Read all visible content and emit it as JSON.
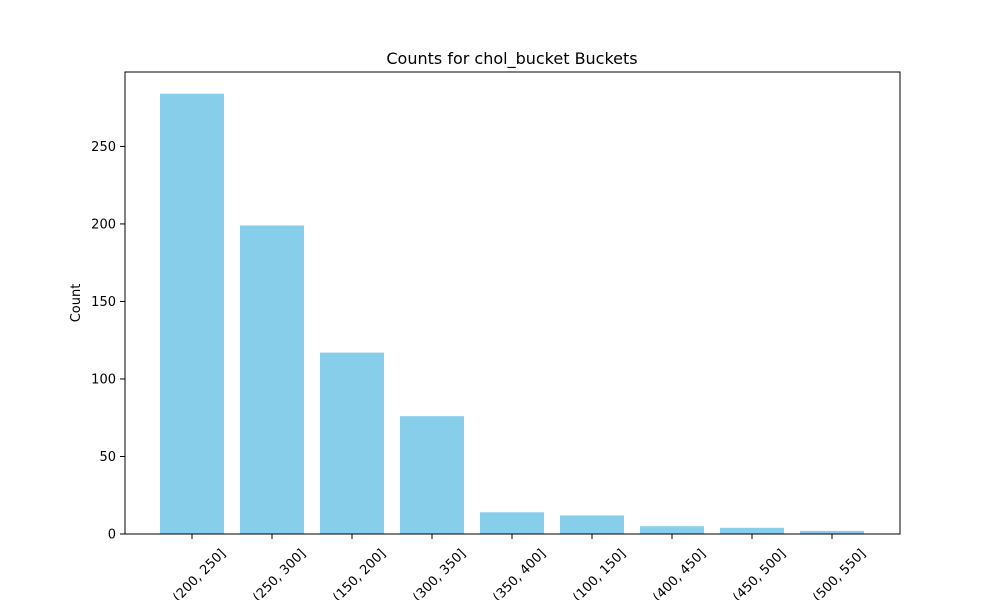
{
  "chart_data": {
    "type": "bar",
    "title": "Counts for chol_bucket Buckets",
    "xlabel": "",
    "ylabel": "Count",
    "categories": [
      "(200, 250]",
      "(250, 300]",
      "(150, 200]",
      "(300, 350]",
      "(350, 400]",
      "(100, 150]",
      "(400, 450]",
      "(450, 500]",
      "(500, 550]"
    ],
    "values": [
      284,
      199,
      117,
      76,
      14,
      12,
      5,
      4,
      2
    ],
    "ylim": [
      0,
      298
    ],
    "yticks": [
      0,
      50,
      100,
      150,
      200,
      250
    ],
    "grid": false,
    "colors": {
      "bar": "#87ceeb",
      "axis": "#000000"
    }
  }
}
